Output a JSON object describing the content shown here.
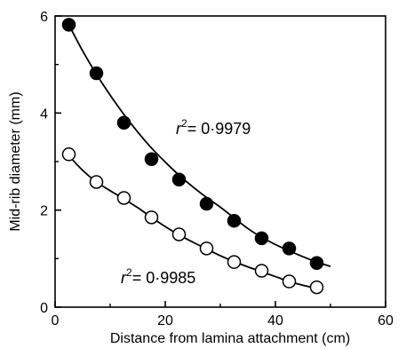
{
  "chart_data": {
    "type": "scatter",
    "title": "",
    "xlabel": "Distance from lamina attachment (cm)",
    "ylabel": "Mid-rib diameter (mm)",
    "xlim": [
      0,
      60
    ],
    "ylim": [
      0,
      6
    ],
    "x_ticks": [
      "0",
      "20",
      "40",
      "60"
    ],
    "y_ticks": [
      "0",
      "2",
      "4",
      "6"
    ],
    "grid": false,
    "legend": "none",
    "series": [
      {
        "marker": "filled-circle",
        "color": "#000000",
        "x": [
          2.5,
          7.5,
          12.5,
          17.5,
          22.5,
          27.5,
          32.5,
          37.5,
          42.5,
          47.5
        ],
        "y": [
          5.82,
          4.82,
          3.8,
          3.05,
          2.63,
          2.13,
          1.78,
          1.42,
          1.21,
          0.91
        ],
        "fit": {
          "type": "curve",
          "x": [
            2.5,
            5,
            7.5,
            10,
            12.5,
            15,
            17.5,
            20,
            22.5,
            25,
            27.5,
            30,
            32.5,
            35,
            37.5,
            40,
            42.5,
            45,
            47.5,
            50
          ],
          "y": [
            5.82,
            5.28,
            4.8,
            4.37,
            3.97,
            3.61,
            3.28,
            2.99,
            2.72,
            2.48,
            2.26,
            2.06,
            1.84,
            1.62,
            1.44,
            1.29,
            1.16,
            1.04,
            0.93,
            0.84
          ]
        },
        "r2_label": "= 0·9979"
      },
      {
        "marker": "open-circle",
        "color": "#000000",
        "x": [
          2.5,
          7.5,
          12.5,
          17.5,
          22.5,
          27.5,
          32.5,
          37.5,
          42.5,
          47.5
        ],
        "y": [
          3.15,
          2.58,
          2.25,
          1.85,
          1.5,
          1.21,
          0.93,
          0.75,
          0.53,
          0.41
        ],
        "fit": {
          "type": "curve",
          "x": [
            2.5,
            5,
            7.5,
            10,
            12.5,
            15,
            17.5,
            20,
            22.5,
            25,
            27.5,
            30,
            32.5,
            35,
            37.5,
            40,
            42.5,
            45,
            47.5
          ],
          "y": [
            3.12,
            2.82,
            2.58,
            2.4,
            2.23,
            2.05,
            1.85,
            1.66,
            1.49,
            1.34,
            1.2,
            1.06,
            0.94,
            0.83,
            0.73,
            0.63,
            0.53,
            0.45,
            0.39
          ]
        },
        "r2_label": "= 0·9985"
      }
    ],
    "annotations": {
      "r_symbol": "r",
      "r_sup": "2"
    }
  }
}
